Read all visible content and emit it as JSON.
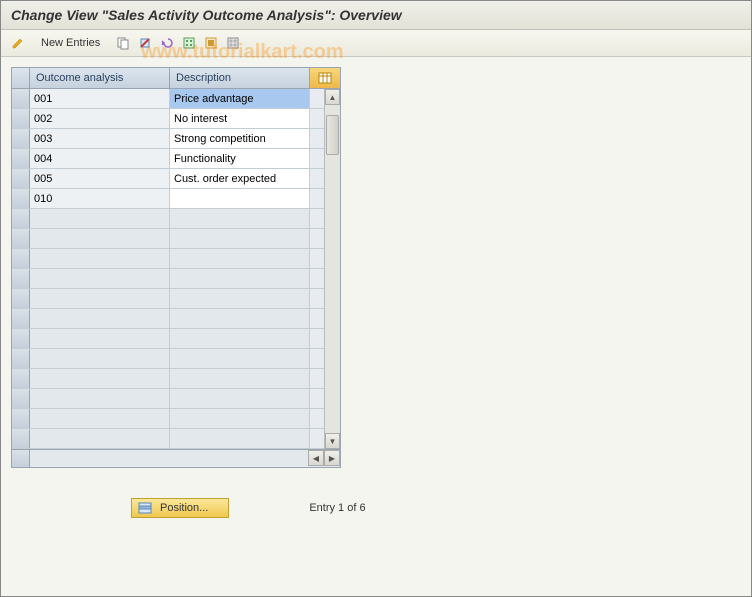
{
  "title": "Change View \"Sales Activity Outcome Analysis\": Overview",
  "toolbar": {
    "new_entries_label": "New Entries"
  },
  "watermark": "www.tutorialkart.com",
  "table": {
    "columns": {
      "outcome": "Outcome analysis",
      "description": "Description"
    },
    "rows": [
      {
        "outcome": "001",
        "description": "Price advantage",
        "selected": true
      },
      {
        "outcome": "002",
        "description": "No interest"
      },
      {
        "outcome": "003",
        "description": "Strong competition"
      },
      {
        "outcome": "004",
        "description": "Functionality"
      },
      {
        "outcome": "005",
        "description": "Cust. order expected"
      },
      {
        "outcome": "010",
        "description": ""
      }
    ],
    "empty_rows": 12
  },
  "footer": {
    "position_label": "Position...",
    "entry_text": "Entry 1 of 6"
  },
  "colors": {
    "header_bg": "#e2e2d8",
    "table_border": "#9aa5b1",
    "selected_bg": "#a8c8f0",
    "position_btn_bg": "#f0c850"
  }
}
